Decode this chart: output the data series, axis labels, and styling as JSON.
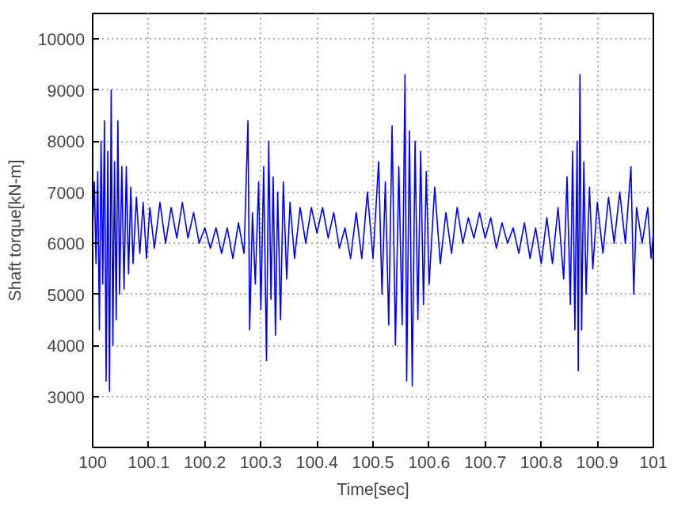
{
  "chart_data": {
    "type": "line",
    "xlabel": "Time[sec]",
    "ylabel": "Shaft torque[kN-m]",
    "xlim": [
      100,
      101
    ],
    "ylim": [
      2000,
      10500
    ],
    "xticks": [
      100,
      100.1,
      100.2,
      100.3,
      100.4,
      100.5,
      100.6,
      100.7,
      100.8,
      100.9,
      101
    ],
    "yticks": [
      3000,
      4000,
      5000,
      6000,
      7000,
      8000,
      9000,
      10000
    ],
    "grid": true,
    "line_style": "solid",
    "series": [
      {
        "color": "#0000ff",
        "x": [
          100.0,
          100.003,
          100.006,
          100.009,
          100.012,
          100.015,
          100.018,
          100.021,
          100.024,
          100.027,
          100.03,
          100.033,
          100.036,
          100.039,
          100.042,
          100.045,
          100.048,
          100.052,
          100.056,
          100.06,
          100.064,
          100.068,
          100.072,
          100.078,
          100.084,
          100.09,
          100.096,
          100.102,
          100.11,
          100.12,
          100.13,
          100.14,
          100.15,
          100.16,
          100.17,
          100.18,
          100.19,
          100.2,
          100.21,
          100.22,
          100.23,
          100.24,
          100.25,
          100.26,
          100.27,
          100.277,
          100.28,
          100.285,
          100.29,
          100.296,
          100.3,
          100.305,
          100.31,
          100.314,
          100.318,
          100.322,
          100.326,
          100.33,
          100.335,
          100.34,
          100.346,
          100.352,
          100.36,
          100.37,
          100.38,
          100.39,
          100.4,
          100.41,
          100.42,
          100.43,
          100.44,
          100.45,
          100.46,
          100.47,
          100.48,
          100.49,
          100.5,
          100.51,
          100.516,
          100.522,
          100.528,
          100.534,
          100.54,
          100.546,
          100.552,
          100.557,
          100.56,
          100.565,
          100.57,
          100.575,
          100.58,
          100.585,
          100.59,
          100.595,
          100.6,
          100.61,
          100.62,
          100.63,
          100.64,
          100.65,
          100.66,
          100.67,
          100.68,
          100.69,
          100.7,
          100.71,
          100.72,
          100.73,
          100.74,
          100.75,
          100.76,
          100.77,
          100.78,
          100.79,
          100.8,
          100.81,
          100.82,
          100.83,
          100.84,
          100.846,
          100.852,
          100.856,
          100.86,
          100.864,
          100.866,
          100.869,
          100.872,
          100.876,
          100.88,
          100.886,
          100.892,
          100.9,
          100.91,
          100.92,
          100.93,
          100.94,
          100.95,
          100.96,
          100.965,
          100.97,
          100.98,
          100.99,
          100.996,
          101.0
        ],
        "values": [
          6300,
          7200,
          5600,
          7400,
          4300,
          8000,
          5200,
          8400,
          3300,
          7800,
          3100,
          9000,
          4000,
          7600,
          4500,
          8400,
          5000,
          7500,
          5100,
          7500,
          5400,
          7100,
          5600,
          6900,
          5800,
          6800,
          5700,
          6700,
          5900,
          6800,
          6000,
          6700,
          6100,
          6800,
          6100,
          6600,
          6000,
          6300,
          5900,
          6300,
          5800,
          6300,
          5700,
          6400,
          5800,
          8400,
          4300,
          6600,
          5200,
          7200,
          4700,
          7500,
          3700,
          8000,
          4900,
          7300,
          4200,
          7000,
          4500,
          7200,
          5300,
          6800,
          5700,
          6700,
          6000,
          6700,
          6200,
          6700,
          6100,
          6600,
          5900,
          6300,
          5700,
          6600,
          5700,
          7000,
          5700,
          7600,
          5000,
          7200,
          4400,
          8300,
          4000,
          7500,
          4400,
          9300,
          3300,
          8200,
          3200,
          8000,
          4500,
          7800,
          4800,
          7400,
          5200,
          7100,
          5600,
          6600,
          5800,
          6700,
          6000,
          6500,
          6100,
          6600,
          6100,
          6500,
          5900,
          6400,
          6000,
          6300,
          5800,
          6400,
          5700,
          6300,
          5600,
          6500,
          5600,
          6700,
          5300,
          7300,
          4800,
          7800,
          4300,
          8000,
          3500,
          9300,
          4300,
          7600,
          5000,
          7100,
          5500,
          6800,
          5800,
          6900,
          6000,
          7000,
          6000,
          7500,
          5000,
          6700,
          6000,
          6700,
          5700,
          6200
        ]
      }
    ]
  }
}
